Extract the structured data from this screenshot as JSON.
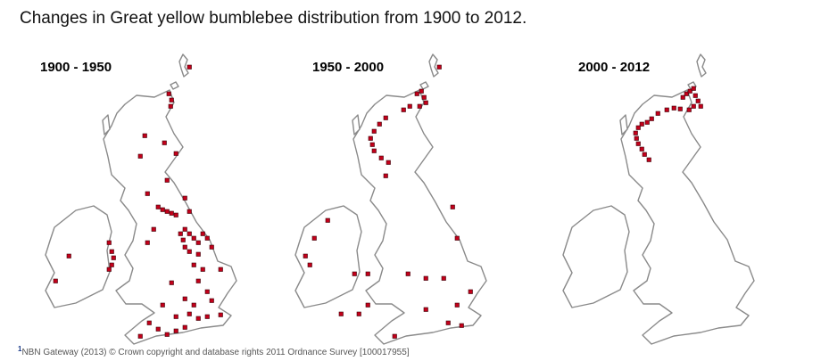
{
  "title": "Changes in Great yellow bumblebee distribution from 1900 to 2012.",
  "panels": [
    {
      "label": "1900 - 1950"
    },
    {
      "label": "1950 - 2000"
    },
    {
      "label": "2000 - 2012"
    }
  ],
  "footnote": {
    "marker": "1",
    "text": "NBN Gateway (2013) © Crown copyright and database rights 2011 Ordnance Survey [100017955]"
  }
}
